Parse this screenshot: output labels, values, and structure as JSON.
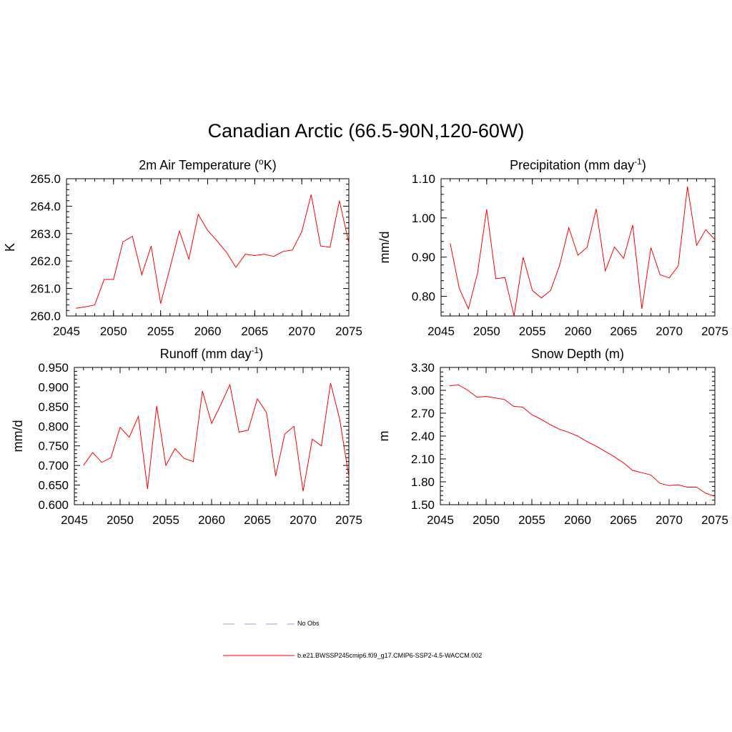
{
  "title": "Canadian Arctic (66.5-90N,120-60W)",
  "legend": {
    "entries": [
      {
        "label": "No Obs",
        "color": "#9999dd",
        "style": "dashed"
      },
      {
        "label": "b.e21.BWSSP245cmip6.f09_g17.CMIP6-SSP2-4.5-WACCM.002",
        "color": "#ff0000",
        "style": "solid"
      }
    ]
  },
  "chart_data": [
    {
      "type": "line",
      "title": "2m Air Temperature (",
      "title_sup": "o",
      "title_tail": "K)",
      "ylabel": "K",
      "xlim": [
        2045,
        2075
      ],
      "ylim": [
        260.0,
        265.0
      ],
      "xticks": [
        2045,
        2050,
        2055,
        2060,
        2065,
        2070,
        2075
      ],
      "yticks": [
        "260.0",
        "261.0",
        "262.0",
        "263.0",
        "264.0",
        "265.0"
      ],
      "color": "#ff0000",
      "x": [
        2046,
        2047,
        2048,
        2049,
        2050,
        2051,
        2052,
        2053,
        2054,
        2055,
        2056,
        2057,
        2058,
        2059,
        2060,
        2061,
        2062,
        2063,
        2064,
        2065,
        2066,
        2067,
        2068,
        2069,
        2070,
        2071,
        2072,
        2073,
        2074,
        2075
      ],
      "y": [
        260.28,
        260.33,
        260.4,
        261.33,
        261.33,
        262.7,
        262.9,
        261.5,
        262.55,
        260.45,
        261.75,
        263.1,
        262.07,
        263.7,
        263.12,
        262.73,
        262.32,
        261.77,
        262.25,
        262.2,
        262.25,
        262.17,
        262.35,
        262.4,
        263.07,
        264.42,
        262.55,
        262.5,
        264.2,
        262.65
      ]
    },
    {
      "type": "line",
      "title": "Precipitation (mm day",
      "title_sup": "-1",
      "title_tail": ")",
      "ylabel": "mm/d",
      "xlim": [
        2045,
        2075
      ],
      "ylim": [
        0.75,
        1.1
      ],
      "xticks": [
        2045,
        2050,
        2055,
        2060,
        2065,
        2070,
        2075
      ],
      "yticks": [
        "0.80",
        "0.90",
        "1.00",
        "1.10"
      ],
      "color": "#ff0000",
      "x": [
        2046,
        2047,
        2048,
        2049,
        2050,
        2051,
        2052,
        2053,
        2054,
        2055,
        2056,
        2057,
        2058,
        2059,
        2060,
        2061,
        2062,
        2063,
        2064,
        2065,
        2066,
        2067,
        2068,
        2069,
        2070,
        2071,
        2072,
        2073,
        2074,
        2075
      ],
      "y": [
        0.935,
        0.82,
        0.768,
        0.86,
        1.022,
        0.845,
        0.848,
        0.75,
        0.9,
        0.815,
        0.796,
        0.815,
        0.88,
        0.975,
        0.905,
        0.925,
        1.023,
        0.865,
        0.926,
        0.897,
        0.982,
        0.768,
        0.924,
        0.855,
        0.847,
        0.878,
        1.08,
        0.93,
        0.97,
        0.945
      ]
    },
    {
      "type": "line",
      "title": "Runoff (mm day",
      "title_sup": "-1",
      "title_tail": ")",
      "ylabel": "mm/d",
      "xlim": [
        2045,
        2075
      ],
      "ylim": [
        0.6,
        0.95
      ],
      "xticks": [
        2045,
        2050,
        2055,
        2060,
        2065,
        2070,
        2075
      ],
      "yticks": [
        "0.600",
        "0.650",
        "0.700",
        "0.750",
        "0.800",
        "0.850",
        "0.900",
        "0.950"
      ],
      "color": "#ff0000",
      "x": [
        2046,
        2047,
        2048,
        2049,
        2050,
        2051,
        2052,
        2053,
        2054,
        2055,
        2056,
        2057,
        2058,
        2059,
        2060,
        2061,
        2062,
        2063,
        2064,
        2065,
        2066,
        2067,
        2068,
        2069,
        2070,
        2071,
        2072,
        2073,
        2074,
        2075
      ],
      "y": [
        0.7,
        0.733,
        0.708,
        0.72,
        0.797,
        0.772,
        0.825,
        0.64,
        0.852,
        0.7,
        0.743,
        0.718,
        0.71,
        0.89,
        0.807,
        0.855,
        0.906,
        0.785,
        0.79,
        0.87,
        0.835,
        0.673,
        0.78,
        0.8,
        0.634,
        0.767,
        0.75,
        0.91,
        0.818,
        0.672
      ]
    },
    {
      "type": "line",
      "title": "Snow Depth (m)",
      "title_sup": "",
      "title_tail": "",
      "ylabel": "m",
      "xlim": [
        2045,
        2075
      ],
      "ylim": [
        1.5,
        3.3
      ],
      "xticks": [
        2045,
        2050,
        2055,
        2060,
        2065,
        2070,
        2075
      ],
      "yticks": [
        "1.50",
        "1.80",
        "2.10",
        "2.40",
        "2.70",
        "3.00",
        "3.30"
      ],
      "color": "#ff0000",
      "x": [
        2046,
        2047,
        2048,
        2049,
        2050,
        2051,
        2052,
        2053,
        2054,
        2055,
        2056,
        2057,
        2058,
        2059,
        2060,
        2061,
        2062,
        2063,
        2064,
        2065,
        2066,
        2067,
        2068,
        2069,
        2070,
        2071,
        2072,
        2073,
        2074,
        2075
      ],
      "y": [
        3.06,
        3.07,
        3.0,
        2.91,
        2.92,
        2.9,
        2.88,
        2.79,
        2.78,
        2.68,
        2.62,
        2.55,
        2.49,
        2.45,
        2.4,
        2.33,
        2.27,
        2.2,
        2.13,
        2.05,
        1.95,
        1.92,
        1.89,
        1.78,
        1.75,
        1.76,
        1.73,
        1.73,
        1.65,
        1.61
      ]
    }
  ]
}
